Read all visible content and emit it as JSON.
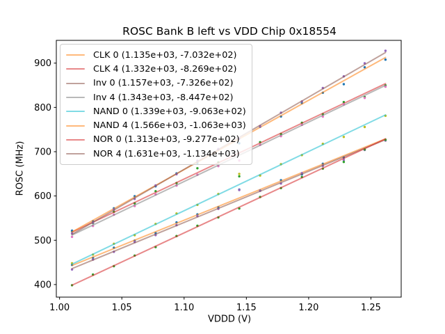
{
  "figure": {
    "background": "#ffffff",
    "frame_color": "#000000"
  },
  "chart_data": {
    "type": "scatter",
    "title": "ROSC Bank B left vs VDD Chip 0x18554",
    "xlabel": "VDDD (V)",
    "ylabel": "ROSC (MHz)",
    "xlim": [
      0.9974,
      1.2743
    ],
    "ylim": [
      371.6,
      951.4
    ],
    "xticks": [
      1.0,
      1.05,
      1.1,
      1.15,
      1.2,
      1.25
    ],
    "xtick_labels": [
      "1.00",
      "1.05",
      "1.10",
      "1.15",
      "1.20",
      "1.25"
    ],
    "yticks": [
      400,
      500,
      600,
      700,
      800,
      900
    ],
    "ytick_labels": [
      "400",
      "500",
      "600",
      "700",
      "800",
      "900"
    ],
    "grid": false,
    "legend_position": "upper left",
    "x": [
      1.01,
      1.0268,
      1.0436,
      1.0603,
      1.0771,
      1.0939,
      1.1107,
      1.1275,
      1.1443,
      1.161,
      1.1778,
      1.1946,
      1.2114,
      1.2282,
      1.245,
      1.2617
    ],
    "series": [
      {
        "name": "CLK 0",
        "label": "CLK 0 (1.135e+03, -7.032e+02)",
        "slope": 1135,
        "intercept": -703.2,
        "line_color": "#ff7f0e",
        "line_alpha": 0.55,
        "dot_color": "#1f77b4",
        "residuals": [
          1,
          -2,
          2,
          -1,
          -3,
          2,
          1,
          -2,
          19,
          -2,
          2,
          -4,
          1,
          -4,
          -5,
          -2
        ]
      },
      {
        "name": "CLK 4",
        "label": "CLK 4 (1.332e+03, -8.269e+02)",
        "slope": 1332,
        "intercept": -826.9,
        "line_color": "#d62728",
        "line_alpha": 0.55,
        "dot_color": "#2ca02c",
        "residuals": [
          2,
          -2,
          1,
          -2,
          3,
          -1,
          10,
          1,
          -53,
          2,
          -2,
          1,
          -2,
          3,
          -8,
          -4
        ]
      },
      {
        "name": "Inv 0",
        "label": "Inv 0 (1.157e+03, -7.326e+02)",
        "slope": 1157,
        "intercept": -732.6,
        "line_color": "#8c564b",
        "line_alpha": 0.55,
        "dot_color": "#9467bd",
        "residuals": [
          -2,
          1,
          -1,
          2,
          -2,
          1,
          2,
          -1,
          22,
          1,
          -2,
          2,
          -1,
          -7,
          -4,
          -2
        ]
      },
      {
        "name": "Inv 4",
        "label": "Inv 4 (1.343e+03, -8.447e+02)",
        "slope": 1343,
        "intercept": -844.7,
        "line_color": "#7f7f7f",
        "line_alpha": 0.55,
        "dot_color": "#e377c2",
        "residuals": [
          -4,
          -2,
          1,
          -2,
          2,
          -1,
          1,
          -2,
          -12,
          1,
          -2,
          1,
          -3,
          2,
          -6,
          -3
        ]
      },
      {
        "name": "NAND 0",
        "label": "NAND 0 (1.339e+03, -9.063e+02)",
        "slope": 1339,
        "intercept": -906.3,
        "line_color": "#17becf",
        "line_alpha": 0.55,
        "dot_color": "#bcbd22",
        "residuals": [
          2,
          -1,
          1,
          -2,
          1,
          2,
          -1,
          1,
          24,
          -2,
          1,
          -1,
          2,
          -5,
          -5,
          -2
        ]
      },
      {
        "name": "NAND 4",
        "label": "NAND 4 (1.566e+03, -1.063e+03)",
        "slope": 1566,
        "intercept": -1063,
        "line_color": "#ff7f0e",
        "line_alpha": 0.55,
        "dot_color": "#1f77b4",
        "residuals": [
          3,
          -2,
          1,
          2,
          -2,
          1,
          -2,
          2,
          -10,
          1,
          -2,
          2,
          -1,
          -8,
          4,
          -5
        ]
      },
      {
        "name": "NOR 0",
        "label": "NOR 0 (1.313e+03, -9.277e+02)",
        "slope": 1313,
        "intercept": -927.7,
        "line_color": "#d62728",
        "line_alpha": 0.55,
        "dot_color": "#2ca02c",
        "residuals": [
          0,
          2,
          -1,
          1,
          -2,
          1,
          2,
          -1,
          -3,
          1,
          -1,
          2,
          -1,
          -8,
          -2,
          -2
        ]
      },
      {
        "name": "NOR 4",
        "label": "NOR 4 (1.631e+03, -1.134e+03)",
        "slope": 1631,
        "intercept": -1134,
        "line_color": "#8c564b",
        "line_alpha": 0.55,
        "dot_color": "#9467bd",
        "residuals": [
          2,
          -1,
          1,
          -2,
          1,
          -1,
          2,
          1,
          -3,
          -2,
          1,
          -1,
          2,
          1,
          3,
          4
        ]
      }
    ]
  }
}
